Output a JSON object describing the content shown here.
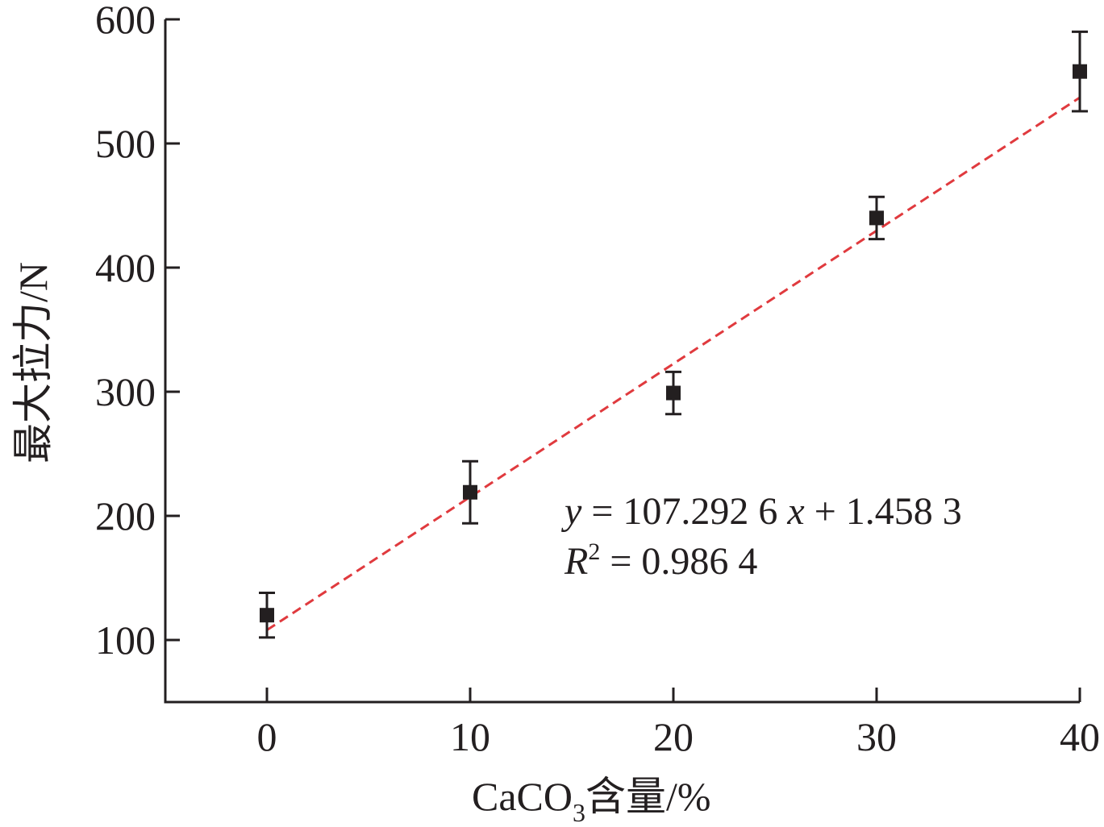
{
  "chart_data": {
    "type": "scatter",
    "title": "",
    "xlabel": "CaCO",
    "xlabel_sub": "3",
    "xlabel_suffix": "含量/%",
    "ylabel": "最大拉力/N",
    "xlim": [
      -5,
      40
    ],
    "ylim": [
      50,
      600
    ],
    "x_ticks": [
      0,
      10,
      20,
      30,
      40
    ],
    "y_ticks": [
      100,
      200,
      300,
      400,
      500,
      600
    ],
    "grid": false,
    "series": [
      {
        "x": [
          0,
          10,
          20,
          30,
          40
        ],
        "y": [
          120,
          219,
          299,
          440,
          558
        ],
        "y_err": [
          18,
          25,
          17,
          17,
          32
        ],
        "marker": "square",
        "color": "#231f20"
      }
    ],
    "fit": {
      "x_range": [
        0,
        40
      ],
      "y_at_start": 108,
      "y_at_end": 537,
      "color": "#e03a3e",
      "style": "dashed"
    },
    "annotations": {
      "equation_y": "y",
      "equation_rest": " = 107.292 6 ",
      "equation_x": "x",
      "equation_tail": " + 1.458 3",
      "r2_R": "R",
      "r2_sup": "2",
      "r2_rest": " = 0.986 4"
    }
  }
}
